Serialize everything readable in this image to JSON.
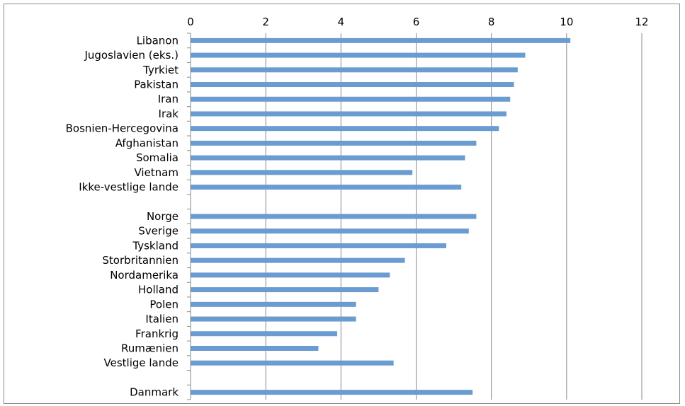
{
  "chart_data": {
    "type": "bar",
    "orientation": "horizontal",
    "title": "",
    "xlabel": "",
    "ylabel": "",
    "xlim": [
      0,
      12
    ],
    "x_ticks": [
      "0",
      "2",
      "4",
      "6",
      "8",
      "10",
      "12"
    ],
    "x_axis_position": "top",
    "grid": true,
    "legend": "none",
    "bar_color": "#6a9bd1",
    "categories": [
      "Libanon",
      "Jugoslavien (eks.)",
      "Tyrkiet",
      "Pakistan",
      "Iran",
      "Irak",
      "Bosnien-Hercegovina",
      "Afghanistan",
      "Somalia",
      "Vietnam",
      "Ikke-vestlige lande",
      "",
      "Norge",
      "Sverige",
      "Tyskland",
      "Storbritannien",
      "Nordamerika",
      "Holland",
      "Polen",
      "Italien",
      "Frankrig",
      "Rumænien",
      "Vestlige lande",
      "",
      "Danmark"
    ],
    "values": [
      10.1,
      8.9,
      8.7,
      8.6,
      8.5,
      8.4,
      8.2,
      7.6,
      7.3,
      5.9,
      7.2,
      null,
      7.6,
      7.4,
      6.8,
      5.7,
      5.3,
      5.0,
      4.4,
      4.4,
      3.9,
      3.4,
      5.4,
      null,
      7.5
    ]
  }
}
